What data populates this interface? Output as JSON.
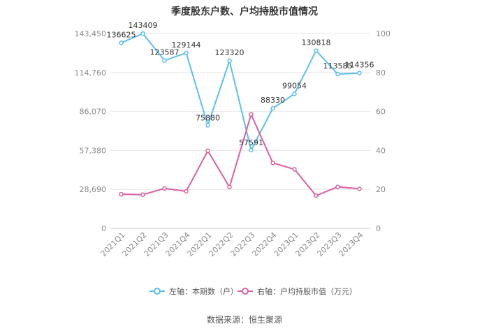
{
  "title": "季度股东户数、户均持股市值情况",
  "source": "数据来源：恒生聚源",
  "chart_data": {
    "type": "line",
    "title": "季度股东户数、户均持股市值情况",
    "categories": [
      "2021Q1",
      "2021Q2",
      "2021Q3",
      "2021Q4",
      "2022Q1",
      "2022Q2",
      "2022Q3",
      "2022Q4",
      "2023Q1",
      "2023Q2",
      "2023Q3",
      "2023Q4"
    ],
    "left_axis": {
      "ticks": [
        "0",
        "28,690",
        "57,380",
        "86,070",
        "114,760",
        "143,450"
      ],
      "tick_values": [
        0,
        28690,
        57380,
        86070,
        114760,
        143450
      ],
      "range": [
        0,
        143450
      ]
    },
    "right_axis": {
      "ticks": [
        "0",
        "20",
        "40",
        "60",
        "80",
        "100"
      ],
      "tick_values": [
        0,
        20,
        40,
        60,
        80,
        100
      ],
      "range": [
        0,
        100
      ]
    },
    "series": [
      {
        "name": "左轴：本期数（户）",
        "axis": "left",
        "color": "#5bc0ee",
        "values": [
          136625,
          143409,
          123587,
          129144,
          75880,
          123320,
          57591,
          88330,
          99054,
          130818,
          113585,
          114356
        ],
        "labels": [
          "136625",
          "143409",
          "123587",
          "129144",
          "75880",
          "123320",
          "57591",
          "88330",
          "99054",
          "130818",
          "113585",
          "114356"
        ]
      },
      {
        "name": "右轴：户均持股市值（万元）",
        "axis": "right",
        "color": "#d9609f",
        "values": [
          17.5,
          17.3,
          20.5,
          19.0,
          39.8,
          21.2,
          58.5,
          33.6,
          30.3,
          16.8,
          21.3,
          20.3
        ]
      }
    ],
    "grid": true,
    "legend": "bottom"
  }
}
